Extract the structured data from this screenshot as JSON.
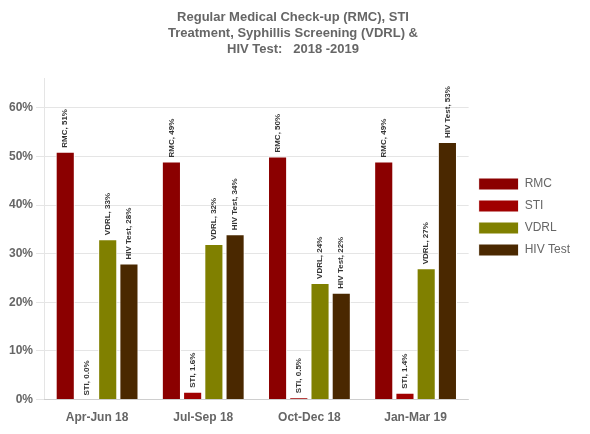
{
  "chart_data": {
    "type": "bar",
    "title": "Regular Medical Check-up (RMC), STI\nTreatment, Syphillis Screening (VDRL) &\nHIV Test:   2018 -2019",
    "categories": [
      "Apr-Jun 18",
      "Jul-Sep 18",
      "Oct-Dec 18",
      "Jan-Mar 19"
    ],
    "series": [
      {
        "name": "RMC",
        "color": "#8B0000",
        "values": [
          51,
          49,
          50,
          49
        ],
        "value_labels": [
          "RMC, 51%",
          "RMC, 49%",
          "RMC, 50%",
          "RMC, 49%"
        ]
      },
      {
        "name": "STI",
        "color": "#A00000",
        "values": [
          0.0,
          1.6,
          0.5,
          1.4
        ],
        "value_labels": [
          "STI, 0.0%",
          "STI, 1.6%",
          "STI, 0.5%",
          "STI, 1.4%"
        ]
      },
      {
        "name": "VDRL",
        "color": "#808000",
        "values": [
          33,
          32,
          24,
          27
        ],
        "value_labels": [
          "VDRL, 33%",
          "VDRL, 32%",
          "VDRL, 24%",
          "VDRL, 27%"
        ]
      },
      {
        "name": "HIV Test",
        "color": "#4A2800",
        "values": [
          28,
          34,
          22,
          53
        ],
        "value_labels": [
          "HIV Test, 28%",
          "HIV Test, 34%",
          "HIV Test, 22%",
          "HIV Test, 53%"
        ]
      }
    ],
    "ylim": [
      0,
      66
    ],
    "yticks": [
      {
        "value": 0,
        "label": "0%"
      },
      {
        "value": 10,
        "label": "10%"
      },
      {
        "value": 20,
        "label": "20%"
      },
      {
        "value": 30,
        "label": "30%"
      },
      {
        "value": 40,
        "label": "40%"
      },
      {
        "value": 50,
        "label": "50%"
      },
      {
        "value": 60,
        "label": "60%"
      }
    ],
    "grid": true,
    "legend": "right",
    "data_labels": true
  }
}
